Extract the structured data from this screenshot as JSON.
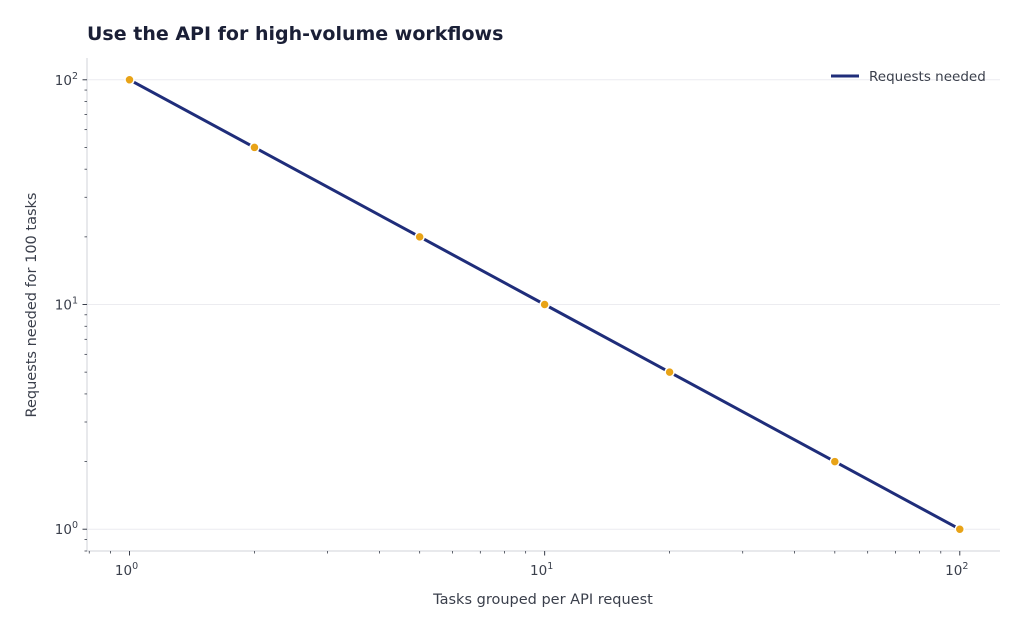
{
  "chart_data": {
    "type": "line",
    "title": "Use the API for high-volume workflows",
    "xlabel": "Tasks grouped per API request",
    "ylabel": "Requests needed for 100 tasks",
    "xscale": "log",
    "yscale": "log",
    "xlim": [
      0.79,
      125
    ],
    "ylim": [
      0.8,
      125
    ],
    "x_ticks": [
      {
        "base": "10",
        "exp": "0",
        "value": 1
      },
      {
        "base": "10",
        "exp": "1",
        "value": 10
      },
      {
        "base": "10",
        "exp": "2",
        "value": 100
      }
    ],
    "y_ticks": [
      {
        "base": "10",
        "exp": "0",
        "value": 1
      },
      {
        "base": "10",
        "exp": "1",
        "value": 10
      },
      {
        "base": "10",
        "exp": "2",
        "value": 100
      }
    ],
    "grid": "y-major",
    "legend_position": "top-right",
    "series": [
      {
        "name": "Requests needed",
        "line_color": "#1f2d7a",
        "marker_color": "#e8a317",
        "x": [
          1,
          2,
          5,
          10,
          20,
          50,
          100
        ],
        "y": [
          100,
          50,
          20,
          10,
          5,
          2,
          1
        ]
      }
    ]
  }
}
